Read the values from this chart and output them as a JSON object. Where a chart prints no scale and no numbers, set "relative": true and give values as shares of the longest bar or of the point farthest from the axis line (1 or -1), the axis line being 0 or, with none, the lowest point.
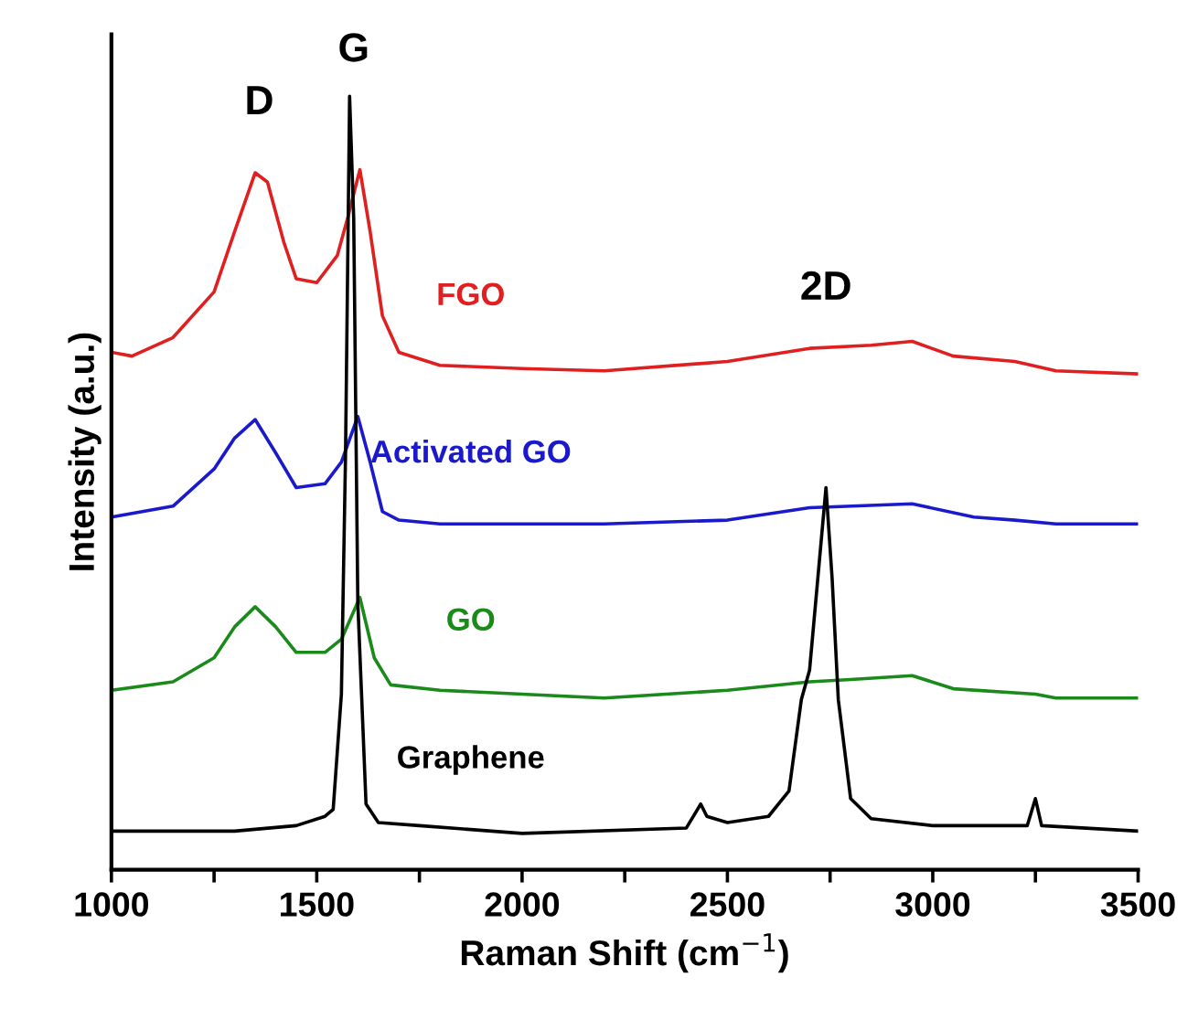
{
  "chart_data": {
    "type": "line",
    "relative": true,
    "xlabel": "Raman Shift (cm$^{−1}$)",
    "ylabel": "Intensity (a.u.)",
    "xlim": [
      1000,
      3500
    ],
    "xticks": [
      1000,
      {
        "value": 1250,
        "label": null
      },
      1500,
      {
        "value": 1750,
        "label": null
      },
      2000,
      {
        "value": 2250,
        "label": null
      },
      2500,
      {
        "value": 2750,
        "label": null
      },
      3000,
      {
        "value": 3250,
        "label": null
      },
      3500
    ],
    "grid": false,
    "legend": false,
    "marker": "none",
    "line_style": "solid",
    "annotations": [
      "D",
      "G",
      "2D"
    ],
    "series": [
      {
        "name": "FGO",
        "color": "#e02020",
        "x": [
          1000,
          1050,
          1150,
          1250,
          1300,
          1350,
          1380,
          1420,
          1450,
          1500,
          1550,
          1575,
          1605,
          1630,
          1660,
          1700,
          1800,
          2000,
          2200,
          2500,
          2700,
          2850,
          2950,
          3050,
          3200,
          3300,
          3500
        ],
        "values": [
          0.669,
          0.664,
          0.688,
          0.747,
          0.825,
          0.901,
          0.889,
          0.811,
          0.764,
          0.759,
          0.794,
          0.842,
          0.905,
          0.825,
          0.716,
          0.669,
          0.652,
          0.648,
          0.645,
          0.657,
          0.674,
          0.678,
          0.683,
          0.664,
          0.657,
          0.645,
          0.641
        ]
      },
      {
        "name": "Activated GO",
        "color": "#1a1acc",
        "x": [
          1000,
          1150,
          1250,
          1300,
          1350,
          1400,
          1450,
          1520,
          1560,
          1600,
          1630,
          1660,
          1700,
          1800,
          2200,
          2500,
          2700,
          2950,
          3100,
          3200,
          3300,
          3500
        ],
        "values": [
          0.456,
          0.47,
          0.518,
          0.558,
          0.582,
          0.539,
          0.494,
          0.499,
          0.527,
          0.586,
          0.527,
          0.463,
          0.452,
          0.447,
          0.447,
          0.452,
          0.468,
          0.473,
          0.456,
          0.452,
          0.447,
          0.447
        ]
      },
      {
        "name": "GO",
        "color": "#1a8a1a",
        "x": [
          1000,
          1150,
          1250,
          1300,
          1350,
          1400,
          1450,
          1520,
          1560,
          1605,
          1640,
          1680,
          1800,
          2000,
          2200,
          2500,
          2700,
          2800,
          2950,
          3050,
          3250,
          3300,
          3500
        ],
        "values": [
          0.232,
          0.243,
          0.274,
          0.314,
          0.34,
          0.314,
          0.281,
          0.281,
          0.298,
          0.352,
          0.274,
          0.239,
          0.232,
          0.227,
          0.222,
          0.232,
          0.243,
          0.246,
          0.251,
          0.234,
          0.227,
          0.222,
          0.222
        ]
      },
      {
        "name": "Graphene",
        "color": "#000000",
        "x": [
          1000,
          1300,
          1450,
          1520,
          1540,
          1560,
          1570,
          1580,
          1590,
          1600,
          1620,
          1650,
          1750,
          2000,
          2400,
          2435,
          2450,
          2500,
          2600,
          2650,
          2680,
          2700,
          2720,
          2740,
          2755,
          2770,
          2800,
          2850,
          3000,
          3230,
          3250,
          3265,
          3500
        ],
        "values": [
          0.05,
          0.05,
          0.057,
          0.069,
          0.078,
          0.227,
          0.534,
          1.0,
          0.842,
          0.345,
          0.085,
          0.061,
          0.057,
          0.047,
          0.054,
          0.085,
          0.069,
          0.061,
          0.069,
          0.102,
          0.22,
          0.258,
          0.376,
          0.494,
          0.376,
          0.22,
          0.092,
          0.066,
          0.057,
          0.057,
          0.092,
          0.057,
          0.05
        ]
      }
    ]
  }
}
